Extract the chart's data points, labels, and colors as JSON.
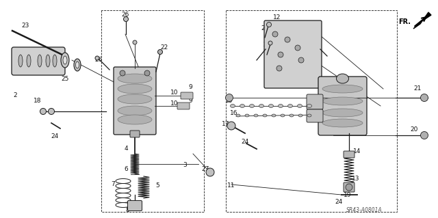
{
  "bg_color": "#f5f5f0",
  "line_color": "#222222",
  "text_color": "#111111",
  "watermark": "SR43-A0801A",
  "fig_width": 6.4,
  "fig_height": 3.19,
  "dpi": 100
}
